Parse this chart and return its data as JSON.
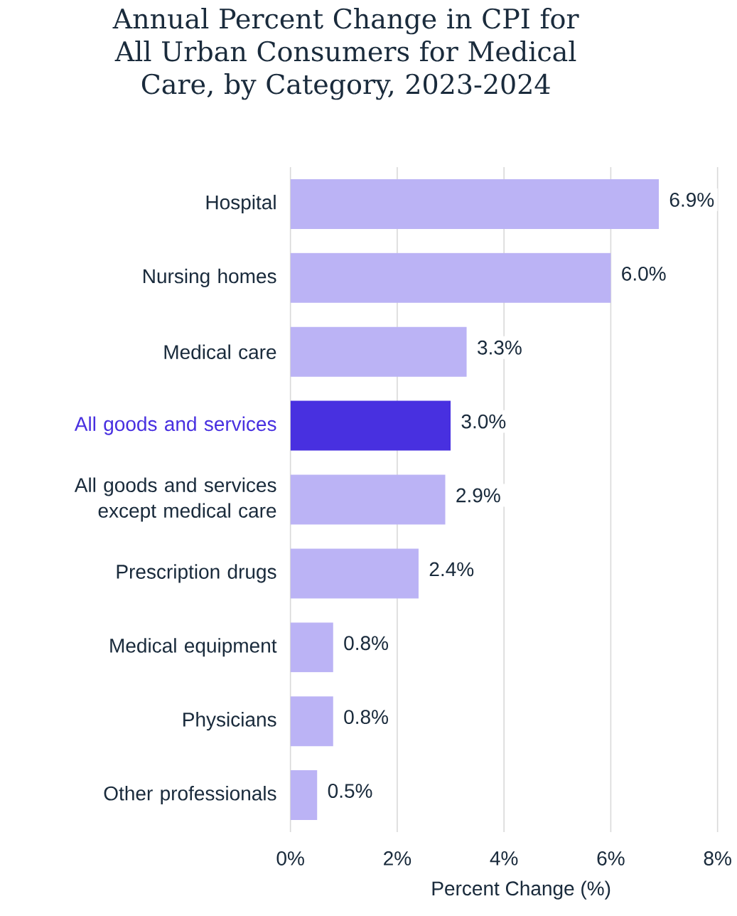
{
  "chart_data": {
    "type": "bar",
    "orientation": "horizontal",
    "title": "Annual Percent Change in CPI for All Urban Consumers for Medical Care, by Category, 2023-2024",
    "xlabel": "Percent Change (%)",
    "categories": [
      "Hospital",
      "Nursing homes",
      "Medical care",
      "All goods and services",
      "All goods and services except medical care",
      "Prescription drugs",
      "Medical equipment",
      "Physicians",
      "Other professionals"
    ],
    "values": [
      6.9,
      6.0,
      3.3,
      3.0,
      2.9,
      2.4,
      0.8,
      0.8,
      0.5
    ],
    "colors": [
      "#bbb3f5",
      "#bbb3f5",
      "#bbb3f5",
      "#4830e0",
      "#bbb3f5",
      "#bbb3f5",
      "#bbb3f5",
      "#bbb3f5",
      "#bbb3f5"
    ],
    "value_labels": [
      "6.9%",
      "6.0%",
      "3.3%",
      "3.0%",
      "2.9%",
      "2.4%",
      "0.8%",
      "0.8%",
      "0.5%"
    ],
    "xlim": [
      0,
      8
    ],
    "xticks": [
      {
        "value": 0,
        "label": "0%"
      },
      {
        "value": 2,
        "label": "2%"
      },
      {
        "value": 4,
        "label": "4%"
      },
      {
        "value": 6,
        "label": "6%"
      },
      {
        "value": 8,
        "label": "8%"
      }
    ],
    "grid": "x"
  }
}
